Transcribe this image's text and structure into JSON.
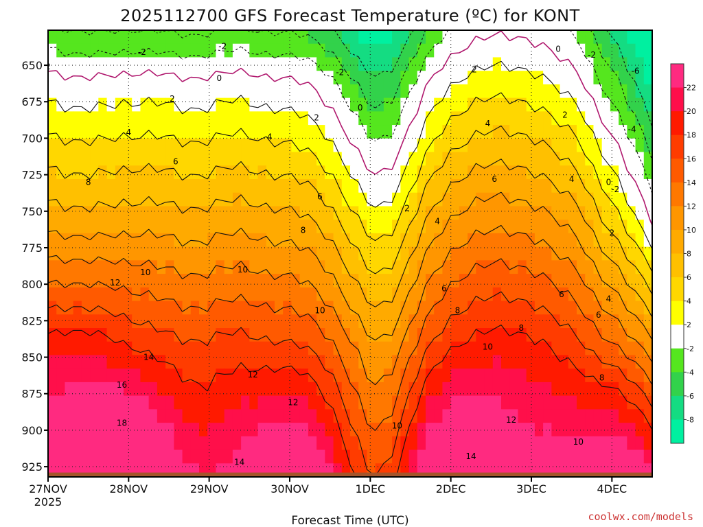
{
  "chart_data": {
    "type": "heatmap",
    "title": "2025112700 GFS Forecast Temperature (ºC) for KONT",
    "xlabel": "Forecast Time (UTC)",
    "ylabel": "",
    "x_ticks": [
      {
        "label": "27NOV",
        "sublabel": "2025",
        "hours": 0
      },
      {
        "label": "28NOV",
        "hours": 24
      },
      {
        "label": "29NOV",
        "hours": 48
      },
      {
        "label": "30NOV",
        "hours": 72
      },
      {
        "label": "1DEC",
        "hours": 96
      },
      {
        "label": "2DEC",
        "hours": 120
      },
      {
        "label": "3DEC",
        "hours": 144
      },
      {
        "label": "4DEC",
        "hours": 168
      }
    ],
    "xlim": [
      0,
      180
    ],
    "y_ticks": [
      650,
      675,
      700,
      725,
      750,
      775,
      800,
      825,
      850,
      875,
      900,
      925
    ],
    "ylim_pressure_top_hpa": 626,
    "ylim_pressure_bottom_hpa": 932,
    "ground_pressure_hpa": 929,
    "colorbar": {
      "labels": [
        "22",
        "20",
        "18",
        "16",
        "14",
        "12",
        "10",
        "8",
        "6",
        "4",
        "2",
        "-2",
        "-4",
        "-6",
        "-8"
      ],
      "bins": [
        {
          "lo": 22,
          "hi": 24,
          "color": "#ff2a80"
        },
        {
          "lo": 20,
          "hi": 22,
          "color": "#ff0f4a"
        },
        {
          "lo": 18,
          "hi": 20,
          "color": "#ff1a00"
        },
        {
          "lo": 16,
          "hi": 18,
          "color": "#ff3c00"
        },
        {
          "lo": 14,
          "hi": 16,
          "color": "#ff5a00"
        },
        {
          "lo": 12,
          "hi": 14,
          "color": "#ff7800"
        },
        {
          "lo": 10,
          "hi": 12,
          "color": "#ff9600"
        },
        {
          "lo": 8,
          "hi": 10,
          "color": "#ffaa00"
        },
        {
          "lo": 6,
          "hi": 8,
          "color": "#ffc000"
        },
        {
          "lo": 4,
          "hi": 6,
          "color": "#ffd700"
        },
        {
          "lo": 2,
          "hi": 4,
          "color": "#ffff00"
        },
        {
          "lo": -2,
          "hi": 2,
          "color": "#ffffff"
        },
        {
          "lo": -4,
          "hi": -2,
          "color": "#55e61e"
        },
        {
          "lo": -6,
          "hi": -4,
          "color": "#32d24b"
        },
        {
          "lo": -8,
          "hi": -6,
          "color": "#14dc82"
        },
        {
          "lo": -10,
          "hi": -8,
          "color": "#00f0a0"
        }
      ]
    },
    "isotherm_labels": [
      {
        "value": "-2",
        "hours": 28,
        "hpa": 641
      },
      {
        "value": "-2",
        "hours": 52,
        "hpa": 637
      },
      {
        "value": "-2",
        "hours": 87,
        "hpa": 655
      },
      {
        "value": "-2",
        "hours": 162,
        "hpa": 643
      },
      {
        "value": "-2",
        "hours": 169,
        "hpa": 735
      },
      {
        "value": "-4",
        "hours": 174,
        "hpa": 694
      },
      {
        "value": "-6",
        "hours": 175,
        "hpa": 654
      },
      {
        "value": "0",
        "hours": 51,
        "hpa": 659
      },
      {
        "value": "0",
        "hours": 93,
        "hpa": 679
      },
      {
        "value": "0",
        "hours": 152,
        "hpa": 639
      },
      {
        "value": "0",
        "hours": 167,
        "hpa": 730
      },
      {
        "value": "2",
        "hours": 0,
        "hpa": 651
      },
      {
        "value": "2",
        "hours": 37,
        "hpa": 673
      },
      {
        "value": "2",
        "hours": 80,
        "hpa": 686
      },
      {
        "value": "2",
        "hours": 107,
        "hpa": 748
      },
      {
        "value": "2",
        "hours": 127,
        "hpa": 653
      },
      {
        "value": "2",
        "hours": 154,
        "hpa": 684
      },
      {
        "value": "2",
        "hours": 168,
        "hpa": 765
      },
      {
        "value": "4",
        "hours": 24,
        "hpa": 696
      },
      {
        "value": "4",
        "hours": 66,
        "hpa": 699
      },
      {
        "value": "4",
        "hours": 116,
        "hpa": 757
      },
      {
        "value": "4",
        "hours": 131,
        "hpa": 690
      },
      {
        "value": "4",
        "hours": 156,
        "hpa": 728
      },
      {
        "value": "4",
        "hours": 167,
        "hpa": 810
      },
      {
        "value": "6",
        "hours": 38,
        "hpa": 716
      },
      {
        "value": "6",
        "hours": 81,
        "hpa": 740
      },
      {
        "value": "6",
        "hours": 118,
        "hpa": 803
      },
      {
        "value": "6",
        "hours": 133,
        "hpa": 728
      },
      {
        "value": "6",
        "hours": 153,
        "hpa": 807
      },
      {
        "value": "6",
        "hours": 164,
        "hpa": 821
      },
      {
        "value": "8",
        "hours": 12,
        "hpa": 730
      },
      {
        "value": "8",
        "hours": 76,
        "hpa": 763
      },
      {
        "value": "8",
        "hours": 122,
        "hpa": 818
      },
      {
        "value": "8",
        "hours": 141,
        "hpa": 830
      },
      {
        "value": "8",
        "hours": 165,
        "hpa": 864
      },
      {
        "value": "10",
        "hours": 29,
        "hpa": 792
      },
      {
        "value": "10",
        "hours": 58,
        "hpa": 790
      },
      {
        "value": "10",
        "hours": 81,
        "hpa": 818
      },
      {
        "value": "10",
        "hours": 104,
        "hpa": 897
      },
      {
        "value": "10",
        "hours": 131,
        "hpa": 843
      },
      {
        "value": "10",
        "hours": 158,
        "hpa": 908
      },
      {
        "value": "12",
        "hours": 20,
        "hpa": 799
      },
      {
        "value": "12",
        "hours": 61,
        "hpa": 862
      },
      {
        "value": "12",
        "hours": 73,
        "hpa": 881
      },
      {
        "value": "12",
        "hours": 138,
        "hpa": 893
      },
      {
        "value": "14",
        "hours": 30,
        "hpa": 850
      },
      {
        "value": "14",
        "hours": 57,
        "hpa": 922
      },
      {
        "value": "14",
        "hours": 126,
        "hpa": 918
      },
      {
        "value": "16",
        "hours": 22,
        "hpa": 869
      },
      {
        "value": "18",
        "hours": 22,
        "hpa": 895
      }
    ]
  },
  "footer": {
    "credit": "coolwx.com/models"
  }
}
